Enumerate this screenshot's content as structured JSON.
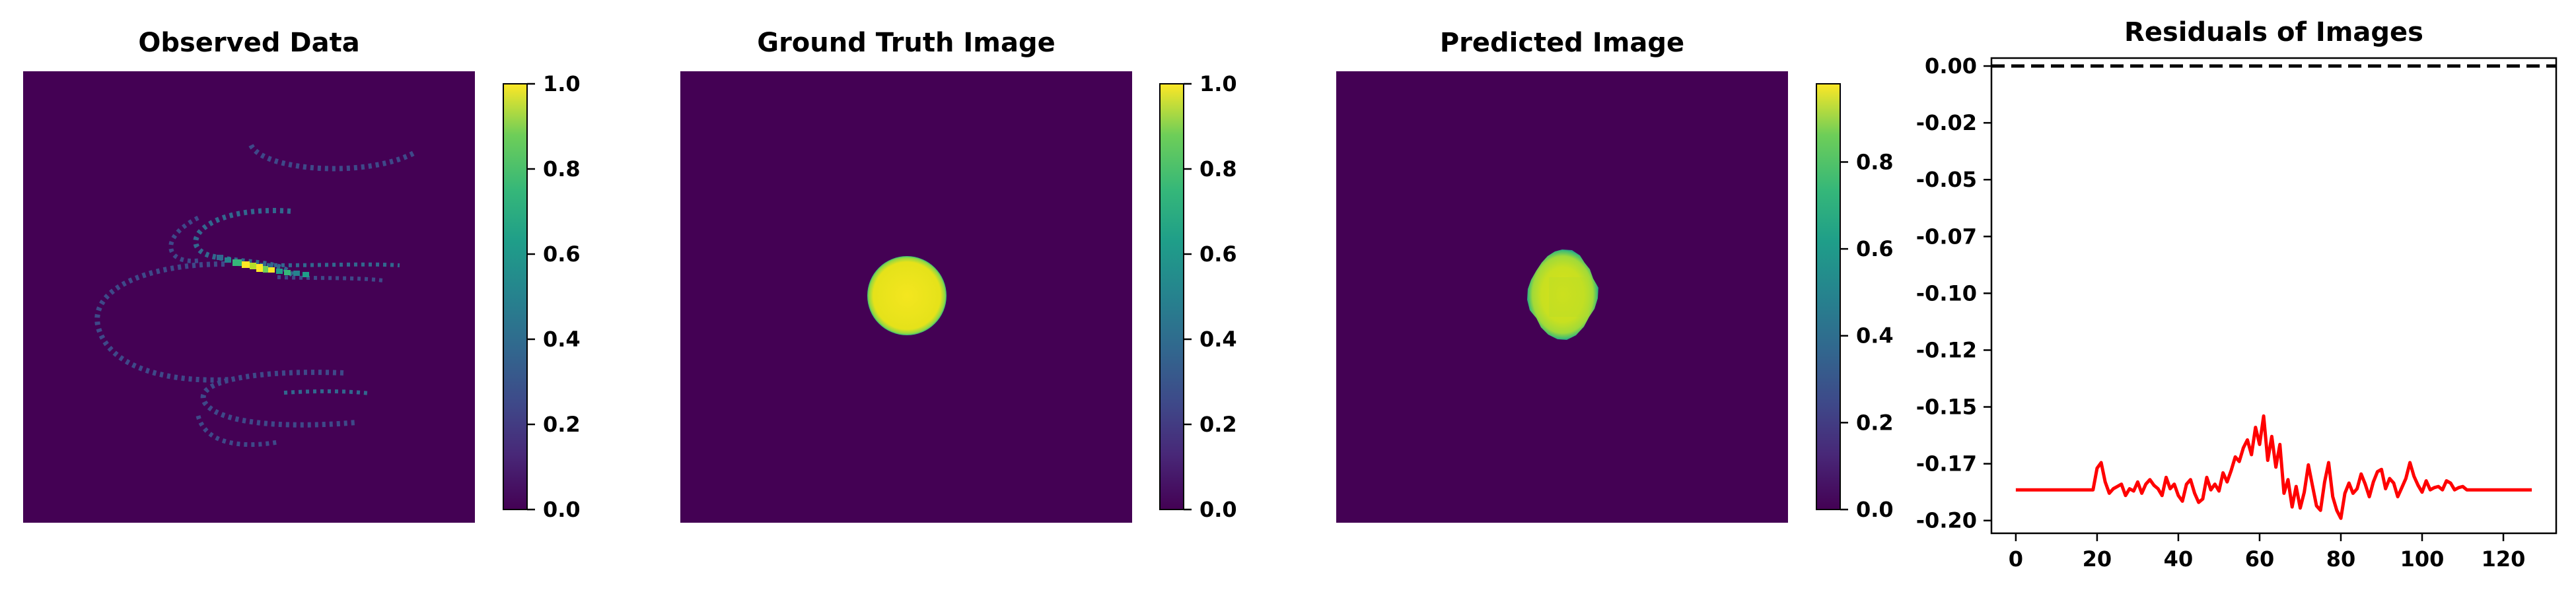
{
  "panels": [
    {
      "id": "observed",
      "title": "Observed Data",
      "type": "heatmap",
      "colormap": "viridis",
      "colorbar": {
        "ticks": [
          "0.0",
          "0.2",
          "0.4",
          "0.6",
          "0.8",
          "1.0"
        ],
        "range": [
          0.0,
          1.0
        ]
      },
      "content": "sparse spiral projection traces"
    },
    {
      "id": "ground-truth",
      "title": "Ground Truth Image",
      "type": "heatmap",
      "colormap": "viridis",
      "colorbar": {
        "ticks": [
          "0.0",
          "0.2",
          "0.4",
          "0.6",
          "0.8",
          "1.0"
        ],
        "range": [
          0.0,
          1.0
        ]
      },
      "content": "centered disk"
    },
    {
      "id": "predicted",
      "title": "Predicted Image",
      "type": "heatmap",
      "colormap": "viridis",
      "colorbar": {
        "ticks": [
          "0.0",
          "0.2",
          "0.4",
          "0.6",
          "0.8"
        ],
        "range": [
          0.0,
          0.98
        ]
      },
      "content": "reconstructed disk with noisy edges"
    }
  ],
  "chart_data": {
    "type": "line",
    "title": "Residuals of Images",
    "xlabel": "",
    "ylabel": "",
    "xlim": [
      -6,
      133
    ],
    "ylim": [
      -0.2056,
      0.0035
    ],
    "xticks": [
      0,
      20,
      40,
      60,
      80,
      100,
      120
    ],
    "yticks": [
      0.0,
      -0.025,
      -0.05,
      -0.075,
      -0.1,
      -0.125,
      -0.15,
      -0.175,
      -0.2
    ],
    "ytick_labels": [
      "0.00",
      "-0.02",
      "-0.05",
      "-0.07",
      "-0.10",
      "-0.12",
      "-0.15",
      "-0.17",
      "-0.20"
    ],
    "reference_line": {
      "y": 0.0,
      "style": "dashed",
      "color": "#000000"
    },
    "series": [
      {
        "color": "#ff0000",
        "x": [
          0,
          5,
          10,
          15,
          19,
          20,
          21,
          22,
          23,
          24,
          25,
          26,
          27,
          28,
          29,
          30,
          31,
          32,
          33,
          34,
          35,
          36,
          37,
          38,
          39,
          40,
          41,
          42,
          43,
          44,
          45,
          46,
          47,
          48,
          49,
          50,
          51,
          52,
          53,
          54,
          55,
          56,
          57,
          58,
          59,
          60,
          61,
          62,
          63,
          64,
          65,
          66,
          67,
          68,
          69,
          70,
          71,
          72,
          73,
          74,
          75,
          76,
          77,
          78,
          79,
          80,
          81,
          82,
          83,
          84,
          85,
          86,
          87,
          88,
          89,
          90,
          91,
          92,
          93,
          94,
          95,
          96,
          97,
          98,
          99,
          100,
          101,
          102,
          103,
          104,
          105,
          106,
          107,
          108,
          109,
          110,
          111,
          112,
          115,
          120,
          127
        ],
        "y": [
          -0.1865,
          -0.1865,
          -0.1865,
          -0.1865,
          -0.1865,
          -0.177,
          -0.1745,
          -0.183,
          -0.188,
          -0.186,
          -0.185,
          -0.184,
          -0.189,
          -0.186,
          -0.187,
          -0.183,
          -0.188,
          -0.184,
          -0.182,
          -0.1845,
          -0.186,
          -0.189,
          -0.181,
          -0.186,
          -0.184,
          -0.189,
          -0.1915,
          -0.184,
          -0.182,
          -0.188,
          -0.192,
          -0.1905,
          -0.181,
          -0.1865,
          -0.184,
          -0.187,
          -0.179,
          -0.183,
          -0.178,
          -0.172,
          -0.174,
          -0.168,
          -0.1645,
          -0.171,
          -0.159,
          -0.1665,
          -0.154,
          -0.1735,
          -0.163,
          -0.1765,
          -0.1665,
          -0.188,
          -0.182,
          -0.194,
          -0.185,
          -0.1945,
          -0.1875,
          -0.1755,
          -0.1845,
          -0.1935,
          -0.1955,
          -0.183,
          -0.1745,
          -0.1895,
          -0.1955,
          -0.199,
          -0.188,
          -0.1835,
          -0.188,
          -0.186,
          -0.1795,
          -0.184,
          -0.1895,
          -0.183,
          -0.1785,
          -0.1775,
          -0.186,
          -0.1815,
          -0.1835,
          -0.1895,
          -0.1855,
          -0.1815,
          -0.1745,
          -0.1805,
          -0.1845,
          -0.1875,
          -0.1825,
          -0.1865,
          -0.1855,
          -0.185,
          -0.1865,
          -0.1825,
          -0.1835,
          -0.1865,
          -0.1855,
          -0.185,
          -0.1865,
          -0.1865,
          -0.1865,
          -0.1865,
          -0.1865
        ]
      }
    ]
  }
}
